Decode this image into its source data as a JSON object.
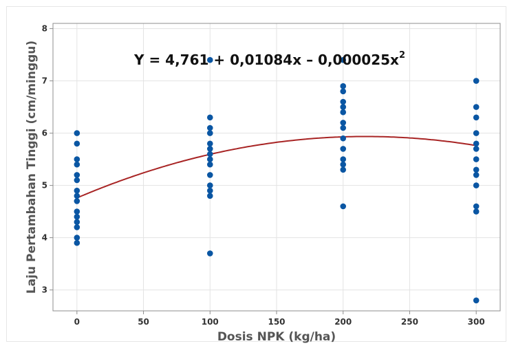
{
  "chart_data": {
    "type": "scatter",
    "xlabel": "Dosis NPK (kg/ha)",
    "ylabel": "Laju Pertambahan Tinggi (cm/minggu)",
    "x_ticks": [
      "0",
      "50",
      "100",
      "150",
      "200",
      "250",
      "300"
    ],
    "y_ticks": [
      "3",
      "4",
      "5",
      "6",
      "7",
      "8"
    ],
    "xlim": [
      -18,
      318
    ],
    "ylim": [
      2.6,
      8.1
    ],
    "grid": true,
    "equation": {
      "text": "Y = 4,761 + 0,01084x – 0,000025x",
      "superscript": "2"
    },
    "points": [
      {
        "x": 0,
        "y": 6.0
      },
      {
        "x": 0,
        "y": 5.8
      },
      {
        "x": 0,
        "y": 5.5
      },
      {
        "x": 0,
        "y": 5.4
      },
      {
        "x": 0,
        "y": 5.2
      },
      {
        "x": 0,
        "y": 5.1
      },
      {
        "x": 0,
        "y": 4.9
      },
      {
        "x": 0,
        "y": 4.8
      },
      {
        "x": 0,
        "y": 4.7
      },
      {
        "x": 0,
        "y": 4.5
      },
      {
        "x": 0,
        "y": 4.4
      },
      {
        "x": 0,
        "y": 4.3
      },
      {
        "x": 0,
        "y": 4.2
      },
      {
        "x": 0,
        "y": 4.0
      },
      {
        "x": 0,
        "y": 3.9
      },
      {
        "x": 100,
        "y": 7.4
      },
      {
        "x": 100,
        "y": 6.3
      },
      {
        "x": 100,
        "y": 6.1
      },
      {
        "x": 100,
        "y": 6.0
      },
      {
        "x": 100,
        "y": 5.8
      },
      {
        "x": 100,
        "y": 5.7
      },
      {
        "x": 100,
        "y": 5.6
      },
      {
        "x": 100,
        "y": 5.5
      },
      {
        "x": 100,
        "y": 5.4
      },
      {
        "x": 100,
        "y": 5.2
      },
      {
        "x": 100,
        "y": 5.0
      },
      {
        "x": 100,
        "y": 4.9
      },
      {
        "x": 100,
        "y": 4.8
      },
      {
        "x": 100,
        "y": 3.7
      },
      {
        "x": 200,
        "y": 7.4
      },
      {
        "x": 200,
        "y": 6.9
      },
      {
        "x": 200,
        "y": 6.8
      },
      {
        "x": 200,
        "y": 6.6
      },
      {
        "x": 200,
        "y": 6.5
      },
      {
        "x": 200,
        "y": 6.4
      },
      {
        "x": 200,
        "y": 6.2
      },
      {
        "x": 200,
        "y": 6.1
      },
      {
        "x": 200,
        "y": 5.9
      },
      {
        "x": 200,
        "y": 5.7
      },
      {
        "x": 200,
        "y": 5.5
      },
      {
        "x": 200,
        "y": 5.4
      },
      {
        "x": 200,
        "y": 5.3
      },
      {
        "x": 200,
        "y": 4.6
      },
      {
        "x": 300,
        "y": 7.0
      },
      {
        "x": 300,
        "y": 6.5
      },
      {
        "x": 300,
        "y": 6.3
      },
      {
        "x": 300,
        "y": 6.0
      },
      {
        "x": 300,
        "y": 5.8
      },
      {
        "x": 300,
        "y": 5.7
      },
      {
        "x": 300,
        "y": 5.5
      },
      {
        "x": 300,
        "y": 5.3
      },
      {
        "x": 300,
        "y": 5.2
      },
      {
        "x": 300,
        "y": 5.0
      },
      {
        "x": 300,
        "y": 4.6
      },
      {
        "x": 300,
        "y": 4.5
      },
      {
        "x": 300,
        "y": 2.8
      }
    ],
    "fit": {
      "type": "quadratic",
      "intercept": 4.761,
      "b1": 0.01084,
      "b2": -2.5e-05,
      "x_range": [
        0,
        300
      ]
    },
    "colors": {
      "points": "#0a56a3",
      "fit": "#a82424",
      "grid": "#e3e3e3",
      "frame": "#8c8c8c"
    }
  }
}
